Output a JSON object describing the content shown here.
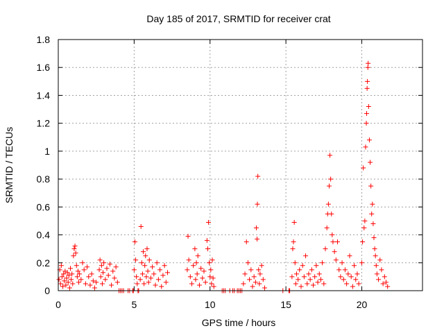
{
  "chart_data": {
    "type": "scatter",
    "title": "Day 185 of 2017, SRMTID for receiver crat",
    "xlabel": "GPS time / hours",
    "ylabel": "SRMTID / TECUs",
    "xlim": [
      0,
      24
    ],
    "ylim": [
      0,
      1.8
    ],
    "xticks": [
      0,
      5,
      10,
      15,
      20
    ],
    "xtick_labels": [
      "0",
      "5",
      "10",
      "15",
      "20"
    ],
    "yticks": [
      0,
      0.2,
      0.4,
      0.6,
      0.8,
      1,
      1.2,
      1.4,
      1.6,
      1.8
    ],
    "ytick_labels": [
      "0",
      "0.2",
      "0.4",
      "0.6",
      "0.8",
      "1",
      "1.2",
      "1.4",
      "1.6",
      "1.8"
    ],
    "grid": true,
    "marker": "+",
    "series": [
      {
        "name": "SRMTID",
        "color": "#ff0000",
        "points": [
          [
            0.05,
            0.08
          ],
          [
            0.1,
            0.15
          ],
          [
            0.15,
            0.05
          ],
          [
            0.2,
            0.18
          ],
          [
            0.25,
            0.1
          ],
          [
            0.3,
            0.03
          ],
          [
            0.35,
            0.12
          ],
          [
            0.4,
            0.07
          ],
          [
            0.45,
            0.14
          ],
          [
            0.5,
            0.04
          ],
          [
            0.55,
            0.09
          ],
          [
            0.6,
            0.13
          ],
          [
            0.65,
            0.06
          ],
          [
            0.7,
            0.11
          ],
          [
            0.75,
            0.02
          ],
          [
            0.8,
            0.16
          ],
          [
            0.85,
            0.08
          ],
          [
            0.9,
            0.12
          ],
          [
            0.95,
            0.05
          ],
          [
            1.0,
            0.25
          ],
          [
            1.05,
            0.3
          ],
          [
            1.1,
            0.32
          ],
          [
            1.15,
            0.27
          ],
          [
            1.2,
            0.18
          ],
          [
            1.25,
            0.1
          ],
          [
            1.3,
            0.14
          ],
          [
            1.35,
            0.06
          ],
          [
            1.4,
            0.12
          ],
          [
            1.5,
            0.08
          ],
          [
            1.6,
            0.2
          ],
          [
            1.7,
            0.15
          ],
          [
            1.8,
            0.05
          ],
          [
            1.9,
            0.17
          ],
          [
            2.0,
            0.1
          ],
          [
            2.1,
            0.04
          ],
          [
            2.2,
            0.12
          ],
          [
            2.3,
            0.07
          ],
          [
            2.4,
            0.02
          ],
          [
            2.5,
            0.06
          ],
          [
            2.7,
            0.15
          ],
          [
            2.75,
            0.22
          ],
          [
            2.8,
            0.1
          ],
          [
            2.85,
            0.18
          ],
          [
            2.9,
            0.05
          ],
          [
            2.95,
            0.13
          ],
          [
            3.0,
            0.2
          ],
          [
            3.1,
            0.08
          ],
          [
            3.2,
            0.16
          ],
          [
            3.3,
            0.11
          ],
          [
            3.4,
            0.19
          ],
          [
            3.5,
            0.04
          ],
          [
            3.6,
            0.14
          ],
          [
            3.7,
            0.09
          ],
          [
            3.8,
            0.17
          ],
          [
            3.9,
            0.06
          ],
          [
            4.0,
            0.0
          ],
          [
            4.1,
            0.0
          ],
          [
            4.2,
            0.0
          ],
          [
            4.3,
            0.0
          ],
          [
            4.6,
            0.0
          ],
          [
            4.7,
            0.0
          ],
          [
            4.9,
            0.0
          ],
          [
            4.95,
            0.0
          ],
          [
            5.0,
            0.15
          ],
          [
            5.05,
            0.35
          ],
          [
            5.1,
            0.22
          ],
          [
            5.15,
            0.1
          ],
          [
            5.2,
            0.05
          ],
          [
            5.25,
            0.0
          ],
          [
            5.3,
            0.0
          ],
          [
            5.4,
            0.08
          ],
          [
            5.45,
            0.46
          ],
          [
            5.5,
            0.2
          ],
          [
            5.55,
            0.12
          ],
          [
            5.6,
            0.28
          ],
          [
            5.65,
            0.05
          ],
          [
            5.7,
            0.18
          ],
          [
            5.75,
            0.25
          ],
          [
            5.8,
            0.1
          ],
          [
            5.85,
            0.3
          ],
          [
            5.9,
            0.14
          ],
          [
            5.95,
            0.06
          ],
          [
            6.0,
            0.22
          ],
          [
            6.1,
            0.09
          ],
          [
            6.2,
            0.17
          ],
          [
            6.3,
            0.12
          ],
          [
            6.4,
            0.04
          ],
          [
            6.5,
            0.2
          ],
          [
            6.6,
            0.08
          ],
          [
            6.7,
            0.15
          ],
          [
            6.8,
            0.03
          ],
          [
            6.9,
            0.11
          ],
          [
            7.0,
            0.18
          ],
          [
            7.1,
            0.06
          ],
          [
            7.2,
            0.13
          ],
          [
            8.5,
            0.15
          ],
          [
            8.55,
            0.39
          ],
          [
            8.6,
            0.22
          ],
          [
            8.7,
            0.1
          ],
          [
            8.8,
            0.05
          ],
          [
            8.9,
            0.18
          ],
          [
            9.0,
            0.3
          ],
          [
            9.05,
            0.08
          ],
          [
            9.1,
            0.2
          ],
          [
            9.15,
            0.12
          ],
          [
            9.2,
            0.25
          ],
          [
            9.3,
            0.04
          ],
          [
            9.4,
            0.16
          ],
          [
            9.5,
            0.09
          ],
          [
            9.6,
            0.14
          ],
          [
            9.7,
            0.06
          ],
          [
            9.8,
            0.36
          ],
          [
            9.85,
            0.3
          ],
          [
            9.9,
            0.49
          ],
          [
            9.95,
            0.2
          ],
          [
            10.0,
            0.1
          ],
          [
            10.05,
            0.15
          ],
          [
            10.1,
            0.05
          ],
          [
            10.15,
            0.22
          ],
          [
            10.2,
            0.09
          ],
          [
            10.25,
            0.03
          ],
          [
            10.8,
            0.0
          ],
          [
            10.9,
            0.0
          ],
          [
            11.0,
            0.0
          ],
          [
            11.3,
            0.0
          ],
          [
            11.5,
            0.0
          ],
          [
            11.6,
            0.0
          ],
          [
            11.8,
            0.0
          ],
          [
            11.9,
            0.0
          ],
          [
            12.0,
            0.0
          ],
          [
            12.1,
            0.0
          ],
          [
            12.2,
            0.05
          ],
          [
            12.3,
            0.12
          ],
          [
            12.4,
            0.35
          ],
          [
            12.5,
            0.2
          ],
          [
            12.6,
            0.08
          ],
          [
            12.7,
            0.15
          ],
          [
            12.8,
            0.03
          ],
          [
            12.9,
            0.1
          ],
          [
            13.0,
            0.06
          ],
          [
            13.05,
            0.45
          ],
          [
            13.1,
            0.37
          ],
          [
            13.12,
            0.62
          ],
          [
            13.15,
            0.82
          ],
          [
            13.2,
            0.15
          ],
          [
            13.25,
            0.05
          ],
          [
            13.3,
            0.12
          ],
          [
            13.4,
            0.18
          ],
          [
            13.5,
            0.08
          ],
          [
            13.6,
            0.02
          ],
          [
            14.8,
            0.0
          ],
          [
            15.2,
            0.0
          ],
          [
            15.25,
            0.0
          ],
          [
            15.4,
            0.1
          ],
          [
            15.45,
            0.3
          ],
          [
            15.5,
            0.35
          ],
          [
            15.55,
            0.49
          ],
          [
            15.6,
            0.2
          ],
          [
            15.65,
            0.05
          ],
          [
            15.7,
            0.12
          ],
          [
            15.8,
            0.08
          ],
          [
            15.9,
            0.15
          ],
          [
            16.0,
            0.03
          ],
          [
            16.1,
            0.18
          ],
          [
            16.2,
            0.1
          ],
          [
            16.3,
            0.25
          ],
          [
            16.4,
            0.05
          ],
          [
            16.5,
            0.12
          ],
          [
            16.6,
            0.08
          ],
          [
            16.7,
            0.15
          ],
          [
            16.8,
            0.04
          ],
          [
            16.9,
            0.1
          ],
          [
            17.0,
            0.18
          ],
          [
            17.1,
            0.06
          ],
          [
            17.2,
            0.12
          ],
          [
            17.3,
            0.08
          ],
          [
            17.4,
            0.2
          ],
          [
            17.5,
            0.05
          ],
          [
            17.6,
            0.3
          ],
          [
            17.7,
            0.45
          ],
          [
            17.75,
            0.55
          ],
          [
            17.8,
            0.62
          ],
          [
            17.85,
            0.75
          ],
          [
            17.9,
            0.97
          ],
          [
            17.95,
            0.8
          ],
          [
            18.0,
            0.55
          ],
          [
            18.05,
            0.4
          ],
          [
            18.1,
            0.35
          ],
          [
            18.2,
            0.28
          ],
          [
            18.3,
            0.22
          ],
          [
            18.4,
            0.35
          ],
          [
            18.5,
            0.15
          ],
          [
            18.6,
            0.1
          ],
          [
            18.7,
            0.2
          ],
          [
            18.8,
            0.08
          ],
          [
            18.9,
            0.15
          ],
          [
            19.0,
            0.05
          ],
          [
            19.1,
            0.12
          ],
          [
            19.2,
            0.25
          ],
          [
            19.3,
            0.1
          ],
          [
            19.4,
            0.03
          ],
          [
            19.5,
            0.18
          ],
          [
            19.6,
            0.08
          ],
          [
            19.7,
            0.12
          ],
          [
            19.8,
            0.05
          ],
          [
            20.0,
            0.2
          ],
          [
            20.05,
            0.35
          ],
          [
            20.1,
            0.88
          ],
          [
            20.15,
            0.45
          ],
          [
            20.2,
            0.5
          ],
          [
            20.25,
            1.03
          ],
          [
            20.3,
            1.2
          ],
          [
            20.32,
            1.27
          ],
          [
            20.35,
            1.45
          ],
          [
            20.37,
            1.5
          ],
          [
            20.4,
            1.6
          ],
          [
            20.42,
            1.63
          ],
          [
            20.45,
            1.32
          ],
          [
            20.5,
            1.08
          ],
          [
            20.55,
            0.92
          ],
          [
            20.6,
            0.75
          ],
          [
            20.65,
            0.55
          ],
          [
            20.7,
            0.62
          ],
          [
            20.75,
            0.48
          ],
          [
            20.8,
            0.38
          ],
          [
            20.85,
            0.3
          ],
          [
            20.9,
            0.25
          ],
          [
            20.95,
            0.18
          ],
          [
            21.0,
            0.12
          ],
          [
            21.1,
            0.08
          ],
          [
            21.2,
            0.22
          ],
          [
            21.3,
            0.15
          ],
          [
            21.4,
            0.05
          ],
          [
            21.5,
            0.1
          ],
          [
            21.6,
            0.06
          ],
          [
            21.7,
            0.03
          ]
        ]
      }
    ]
  }
}
